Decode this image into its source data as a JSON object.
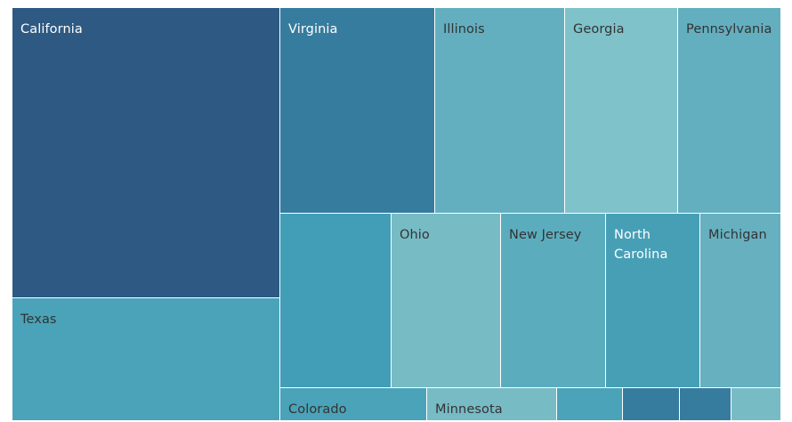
{
  "chart_data": {
    "type": "treemap",
    "title": "",
    "items": [
      {
        "label": "California",
        "color": "#2e5983",
        "text_color": "light"
      },
      {
        "label": "Texas",
        "color": "#4aa3b8",
        "text_color": "dark"
      },
      {
        "label": "Virginia",
        "color": "#367c9e",
        "text_color": "light"
      },
      {
        "label": "Illinois",
        "color": "#63afc0",
        "text_color": "dark"
      },
      {
        "label": "Georgia",
        "color": "#7fc2ca",
        "text_color": "dark"
      },
      {
        "label": "Pennsylvania",
        "color": "#63afc0",
        "text_color": "dark"
      },
      {
        "label": "",
        "color": "#429db6",
        "text_color": "dark"
      },
      {
        "label": "Ohio",
        "color": "#77bbc5",
        "text_color": "dark"
      },
      {
        "label": "New Jersey",
        "color": "#5badbe",
        "text_color": "dark"
      },
      {
        "label": "North Carolina",
        "color": "#479fb6",
        "text_color": "light"
      },
      {
        "label": "Michigan",
        "color": "#66b0c0",
        "text_color": "dark"
      },
      {
        "label": "Colorado",
        "color": "#4aa3b8",
        "text_color": "dark"
      },
      {
        "label": "Minnesota",
        "color": "#77bbc5",
        "text_color": "dark"
      },
      {
        "label": "",
        "color": "#4aa3b8",
        "text_color": "dark"
      },
      {
        "label": "",
        "color": "#367c9e",
        "text_color": "dark"
      },
      {
        "label": "",
        "color": "#367c9e",
        "text_color": "dark"
      },
      {
        "label": "",
        "color": "#77bbc5",
        "text_color": "dark"
      }
    ]
  }
}
